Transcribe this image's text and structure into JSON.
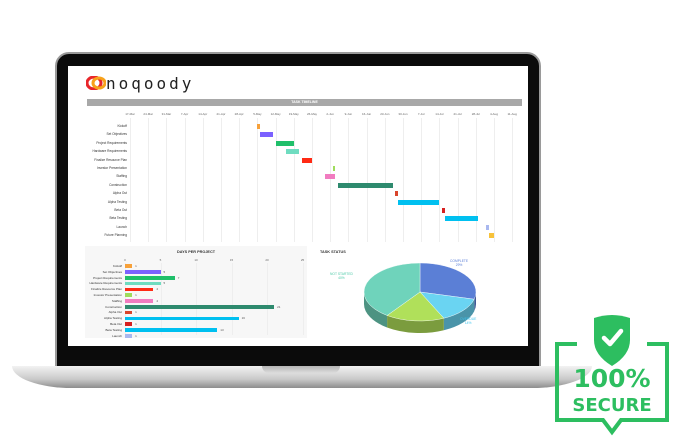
{
  "brand": {
    "logo_text": "noqoody"
  },
  "timeline": {
    "title": "TASK TIMELINE",
    "ticks": [
      "17-Mar",
      "24-Mar",
      "31-Mar",
      "7-Apr",
      "14-Apr",
      "21-Apr",
      "28-Apr",
      "5-May",
      "12-May",
      "19-May",
      "26-May",
      "2-Jun",
      "9-Jun",
      "16-Jun",
      "23-Jun",
      "30-Jun",
      "7-Jul",
      "14-Jul",
      "21-Jul",
      "28-Jul",
      "4-Aug",
      "11-Aug"
    ],
    "tasks": [
      {
        "name": "Kickoff",
        "start": "5-May",
        "days": 1,
        "color": "#f7a13a"
      },
      {
        "name": "Set Objectives",
        "start": "6-May",
        "days": 5,
        "color": "#7b61ff"
      },
      {
        "name": "Project Requirements",
        "start": "12-May",
        "days": 7,
        "color": "#1fbf6a"
      },
      {
        "name": "Hardware Requirements",
        "start": "16-May",
        "days": 5,
        "color": "#6fdcc0"
      },
      {
        "name": "Finalize Resource Plan",
        "start": "22-May",
        "days": 4,
        "color": "#ff2a14"
      },
      {
        "name": "Investor Presentation",
        "start": "3-Jun",
        "days": 1,
        "color": "#9fdc5c"
      },
      {
        "name": "Staffing",
        "start": "31-May",
        "days": 4,
        "color": "#f17cc0"
      },
      {
        "name": "Construction",
        "start": "5-Jun",
        "days": 21,
        "color": "#2e8a6e"
      },
      {
        "name": "Alpha Out",
        "start": "27-Jun",
        "days": 1,
        "color": "#d9452b"
      },
      {
        "name": "Alpha Testing",
        "start": "28-Jun",
        "days": 16,
        "color": "#00c0f0"
      },
      {
        "name": "Beta Out",
        "start": "15-Jul",
        "days": 1,
        "color": "#d72020"
      },
      {
        "name": "Beta Testing",
        "start": "16-Jul",
        "days": 13,
        "color": "#00c0f0"
      },
      {
        "name": "Launch",
        "start": "1-Aug",
        "days": 1,
        "color": "#a9b8ef"
      },
      {
        "name": "Future Planning",
        "start": "2-Aug",
        "days": 2,
        "color": "#f7c23a"
      }
    ]
  },
  "chart_data": [
    {
      "type": "bar",
      "title": "DAYS PER PROJECT",
      "orientation": "horizontal",
      "xlim": [
        0,
        25
      ],
      "ticks": [
        "0",
        "5",
        "10",
        "15",
        "20",
        "25"
      ],
      "categories": [
        "Kickoff",
        "Set Objectives",
        "Project Requirements",
        "Hardware Requirements",
        "Finalize Resource Plan",
        "Investor Presentation",
        "Staffing",
        "Construction",
        "Alpha Out",
        "Alpha Testing",
        "Beta Out",
        "Beta Testing",
        "Launch"
      ],
      "values": [
        1,
        5,
        7,
        5,
        4,
        1,
        4,
        21,
        1,
        16,
        1,
        13,
        1
      ],
      "labels": [
        "1",
        "5",
        "7",
        "5",
        "4",
        "1",
        "4",
        "21",
        "1",
        "16",
        "1",
        "13",
        "1"
      ],
      "colors": [
        "#f7a13a",
        "#7b61ff",
        "#1fbf6a",
        "#6fdcc0",
        "#ff2a14",
        "#9fdc5c",
        "#f17cc0",
        "#2e8a6e",
        "#d9452b",
        "#00c0f0",
        "#d72020",
        "#00c0f0",
        "#a9b8ef"
      ]
    },
    {
      "type": "pie",
      "title": "TASK STATUS",
      "style": "3d",
      "slices": [
        {
          "name": "COMPLETE",
          "value": 29,
          "label": "29%",
          "color": "#5b7fd6"
        },
        {
          "name": "OVERDUE",
          "value": 14,
          "label": "14%",
          "color": "#6ad4f2"
        },
        {
          "name": "",
          "value": 17,
          "label": "",
          "color": "#b0e05a"
        },
        {
          "name": "NOT STARTED",
          "value": 40,
          "label": "40%",
          "color": "#6fd3bb"
        }
      ]
    }
  ],
  "badge": {
    "line1": "100%",
    "line2": "SECURE",
    "color": "#2dbe60"
  }
}
